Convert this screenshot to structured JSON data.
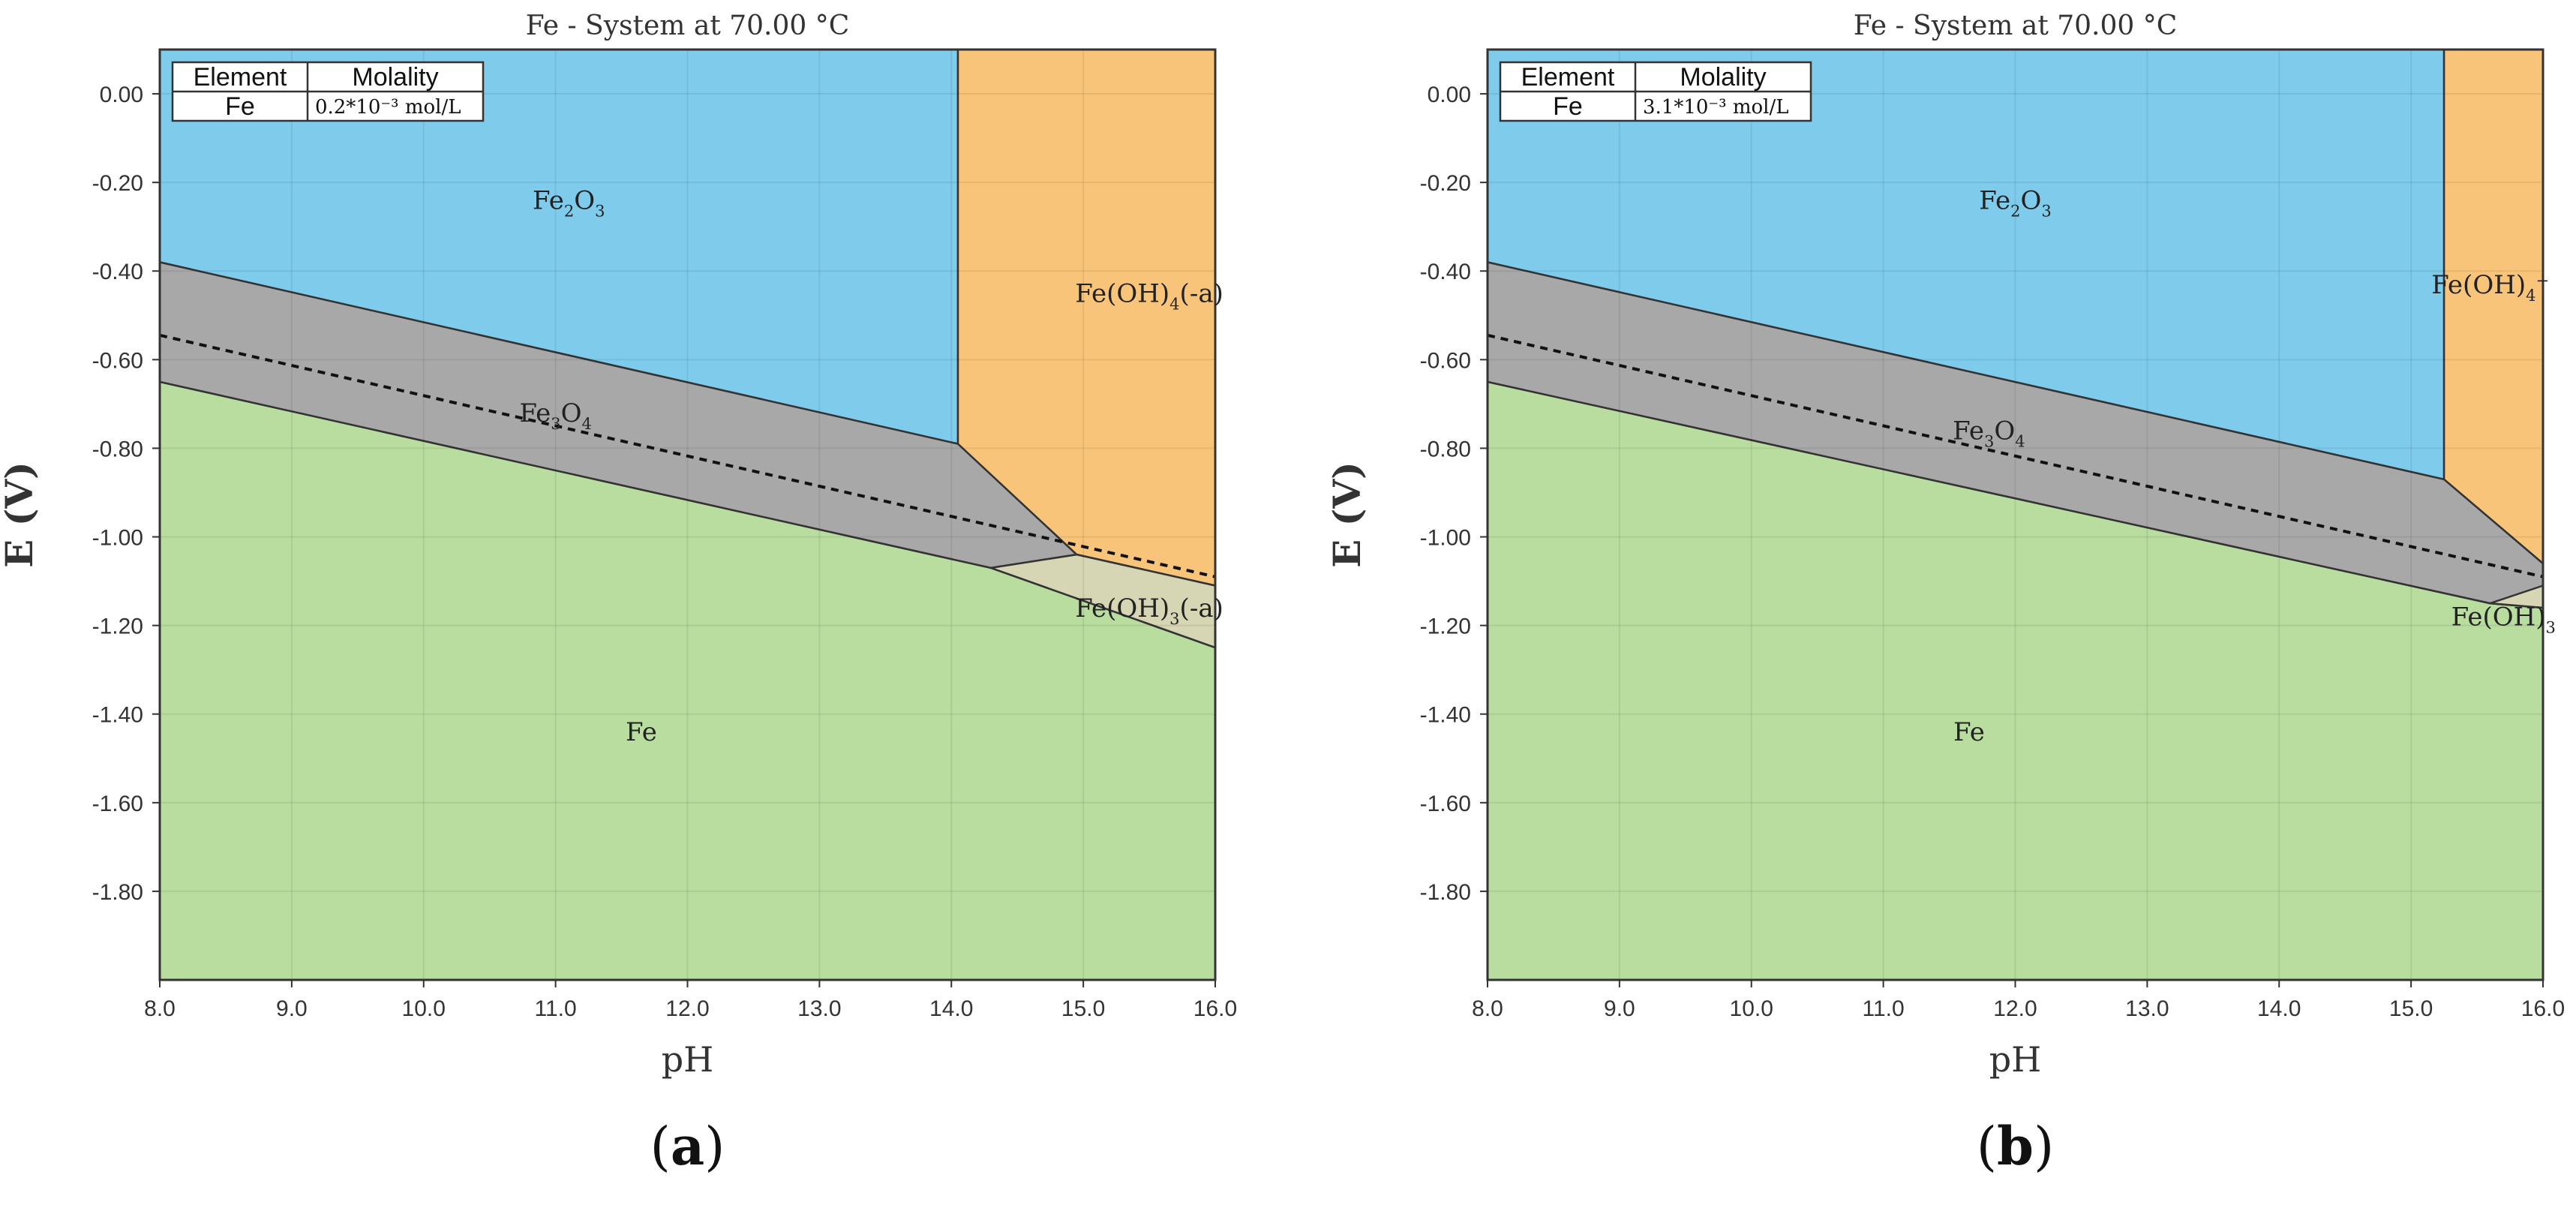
{
  "chart_data": [
    {
      "type": "area",
      "title": "Fe - System at 70.00 °C",
      "xlabel": "pH",
      "ylabel": "E  (V)",
      "caption": "a",
      "xlim": [
        8.0,
        16.0
      ],
      "ylim": [
        -2.0,
        0.1
      ],
      "xticks": [
        "8.0",
        "9.0",
        "10.0",
        "11.0",
        "12.0",
        "13.0",
        "14.0",
        "15.0",
        "16.0"
      ],
      "yticks": [
        "0.00",
        "-0.20",
        "-0.40",
        "-0.60",
        "-0.80",
        "-1.00",
        "-1.20",
        "-1.40",
        "-1.60",
        "-1.80"
      ],
      "grid": true,
      "legend": {
        "headers": [
          "Element",
          "Molality"
        ],
        "element": "Fe",
        "molality": "0.2*10⁻³ mol/L",
        "position": "top-left"
      },
      "regions": [
        {
          "species": "Fe",
          "color": "#b9dc9f",
          "label_pos": [
            11.65,
            -1.46
          ],
          "polygon": [
            [
              8.0,
              -0.65
            ],
            [
              14.3,
              -1.07
            ],
            [
              16.0,
              -1.25
            ],
            [
              16.0,
              -2.0
            ],
            [
              8.0,
              -2.0
            ]
          ]
        },
        {
          "species": "Fe3O4",
          "label": "Fe3O4",
          "color": "#a8a8a8",
          "label_pos": [
            11.0,
            -0.74
          ],
          "polygon": [
            [
              8.0,
              -0.38
            ],
            [
              14.05,
              -0.79
            ],
            [
              14.95,
              -1.04
            ],
            [
              14.3,
              -1.07
            ],
            [
              8.0,
              -0.65
            ]
          ]
        },
        {
          "species": "Fe2O3",
          "label": "Fe2O3",
          "color": "#7ecbec",
          "label_pos": [
            11.1,
            -0.26
          ],
          "polygon": [
            [
              8.0,
              0.1
            ],
            [
              14.05,
              0.1
            ],
            [
              14.05,
              -0.79
            ],
            [
              8.0,
              -0.38
            ]
          ]
        },
        {
          "species": "Fe(OH)4-",
          "label": "Fe(OH)4(-a)",
          "color": "#f8c47a",
          "label_pos": [
            15.5,
            -0.47
          ],
          "polygon": [
            [
              14.05,
              0.1
            ],
            [
              16.0,
              0.1
            ],
            [
              16.0,
              -1.11
            ],
            [
              14.95,
              -1.04
            ],
            [
              14.05,
              -0.79
            ]
          ]
        },
        {
          "species": "Fe(OH)3-",
          "label": "Fe(OH)3(-a)",
          "color": "#d6d5b4",
          "label_pos": [
            15.5,
            -1.18
          ],
          "polygon": [
            [
              14.3,
              -1.07
            ],
            [
              14.95,
              -1.04
            ],
            [
              16.0,
              -1.11
            ],
            [
              16.0,
              -1.25
            ]
          ]
        }
      ],
      "water_line": {
        "style": "dashed",
        "x": [
          8.0,
          16.0
        ],
        "y": [
          -0.545,
          -1.09
        ]
      }
    },
    {
      "type": "area",
      "title": "Fe - System at 70.00 °C",
      "xlabel": "pH",
      "ylabel": "E  (V)",
      "caption": "b",
      "xlim": [
        8.0,
        16.0
      ],
      "ylim": [
        -2.0,
        0.1
      ],
      "xticks": [
        "8.0",
        "9.0",
        "10.0",
        "11.0",
        "12.0",
        "13.0",
        "14.0",
        "15.0",
        "16.0"
      ],
      "yticks": [
        "0.00",
        "-0.20",
        "-0.40",
        "-0.60",
        "-0.80",
        "-1.00",
        "-1.20",
        "-1.40",
        "-1.60",
        "-1.80"
      ],
      "grid": true,
      "legend": {
        "headers": [
          "Element",
          "Molality"
        ],
        "element": "Fe",
        "molality": "3.1*10⁻³ mol/L",
        "position": "top-left"
      },
      "regions": [
        {
          "species": "Fe",
          "color": "#b9dc9f",
          "label_pos": [
            11.65,
            -1.46
          ],
          "polygon": [
            [
              8.0,
              -0.65
            ],
            [
              15.6,
              -1.15
            ],
            [
              16.0,
              -1.16
            ],
            [
              16.0,
              -2.0
            ],
            [
              8.0,
              -2.0
            ]
          ]
        },
        {
          "species": "Fe3O4",
          "label": "Fe3O4",
          "color": "#a8a8a8",
          "label_pos": [
            11.8,
            -0.78
          ],
          "polygon": [
            [
              8.0,
              -0.38
            ],
            [
              15.25,
              -0.87
            ],
            [
              16.0,
              -1.06
            ],
            [
              16.0,
              -1.16
            ],
            [
              15.6,
              -1.15
            ],
            [
              8.0,
              -0.65
            ]
          ]
        },
        {
          "species": "Fe2O3",
          "label": "Fe2O3",
          "color": "#7ecbec",
          "label_pos": [
            12.0,
            -0.26
          ],
          "polygon": [
            [
              8.0,
              0.1
            ],
            [
              15.25,
              0.1
            ],
            [
              15.25,
              -0.87
            ],
            [
              8.0,
              -0.38
            ]
          ]
        },
        {
          "species": "Fe(OH)4-",
          "label": "Fe(OH)4-",
          "color": "#f8c47a",
          "label_pos": [
            15.6,
            -0.45
          ],
          "polygon": [
            [
              15.25,
              0.1
            ],
            [
              16.0,
              0.1
            ],
            [
              16.0,
              -1.06
            ],
            [
              15.25,
              -0.87
            ]
          ]
        },
        {
          "species": "Fe(OH)3-",
          "label": "Fe(OH)3",
          "color": "#d6d5b4",
          "label_pos": [
            15.7,
            -1.2
          ],
          "polygon": [
            [
              15.6,
              -1.15
            ],
            [
              16.0,
              -1.11
            ],
            [
              16.0,
              -1.16
            ]
          ]
        }
      ],
      "water_line": {
        "style": "dashed",
        "x": [
          8.0,
          16.0
        ],
        "y": [
          -0.545,
          -1.09
        ]
      }
    }
  ]
}
